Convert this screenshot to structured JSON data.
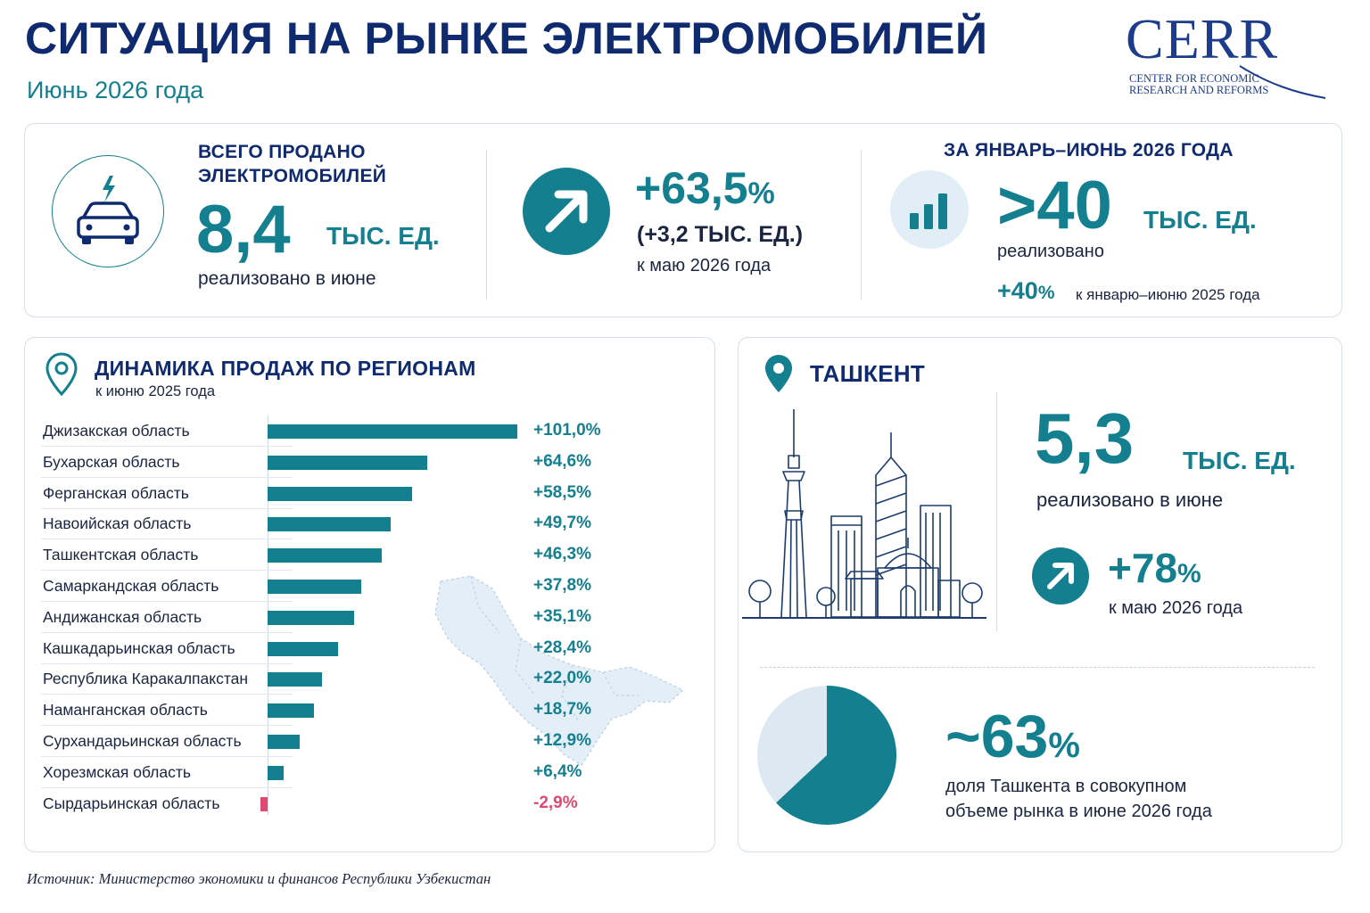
{
  "header": {
    "title": "СИТУАЦИЯ НА РЫНКЕ ЭЛЕКТРОМОБИЛЕЙ",
    "subtitle": "Июнь 2026 года"
  },
  "logo": {
    "word": "CERR",
    "line1": "CENTER FOR ECONOMIC",
    "line2": "RESEARCH AND REFORMS"
  },
  "kpi_total": {
    "heading_line1": "ВСЕГО ПРОДАНО",
    "heading_line2": "ЭЛЕКТРОМОБИЛЕЙ",
    "value": "8,4",
    "unit": "ТЫС. ЕД.",
    "caption": "реализовано в июне",
    "icon": "electric-car-icon"
  },
  "kpi_growth": {
    "value": "+63,5",
    "pct": "%",
    "abs": "(+3,2 ТЫС. ЕД.)",
    "caption": "к маю 2026 года",
    "icon": "arrow-up-right-icon"
  },
  "kpi_ytd": {
    "heading": "ЗА ЯНВАРЬ–ИЮНЬ 2026 ГОДА",
    "value": ">40",
    "unit": "ТЫС. ЕД.",
    "caption": "реализовано",
    "growth": "+40",
    "growth_pct": "%",
    "growth_caption": "к январю–июню 2025 года",
    "icon": "bar-chart-icon"
  },
  "regions": {
    "heading": "ДИНАМИКА ПРОДАЖ ПО РЕГИОНАМ",
    "subheading": "к июню 2025 года",
    "icon": "map-pin-icon"
  },
  "chart_data": {
    "type": "bar",
    "orientation": "horizontal",
    "title": "ДИНАМИКА ПРОДАЖ ПО РЕГИОНАМ",
    "subtitle": "к июню 2025 года",
    "categories": [
      "Джизакская область",
      "Бухарская область",
      "Ферганская область",
      "Навоийская область",
      "Ташкентская область",
      "Самаркандская область",
      "Андижанская область",
      "Кашкадарьинская область",
      "Республика Каракалпакстан",
      "Наманганская область",
      "Сурхандарьинская область",
      "Хорезмская область",
      "Сырдарьинская область"
    ],
    "values": [
      101.0,
      64.6,
      58.5,
      49.7,
      46.3,
      37.8,
      35.1,
      28.4,
      22.0,
      18.7,
      12.9,
      6.4,
      -2.9
    ],
    "value_labels": [
      "+101,0%",
      "+64,6%",
      "+58,5%",
      "+49,7%",
      "+46,3%",
      "+37,8%",
      "+35,1%",
      "+28,4%",
      "+22,0%",
      "+18,7%",
      "+12,9%",
      "+6,4%",
      "-2,9%"
    ],
    "unit": "%",
    "colors": {
      "positive": "#147f8f",
      "negative": "#e04870"
    }
  },
  "tashkent": {
    "heading": "ТАШКЕНТ",
    "icon": "map-pin-icon",
    "value": "5,3",
    "unit": "ТЫС. ЕД.",
    "caption": "реализовано в июне",
    "growth": "+78",
    "growth_pct": "%",
    "growth_caption": "к маю 2026 года",
    "share_value": "~63",
    "share_pct": "%",
    "share_fraction": 0.63,
    "share_caption_line1": "доля Ташкента в совокупном",
    "share_caption_line2": "объеме рынка в июне 2026 года"
  },
  "source": "Источник: Министерство экономики и финансов Республики Узбекистан",
  "colors": {
    "navy": "#0f2a6e",
    "teal": "#147f8f",
    "negative": "#e04870",
    "light": "#dce9f3"
  }
}
